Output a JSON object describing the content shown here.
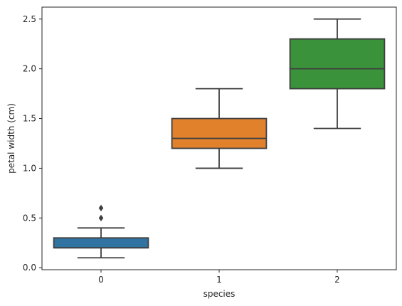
{
  "chart_data": {
    "type": "box",
    "xlabel": "species",
    "ylabel": "petal width (cm)",
    "categories": [
      "0",
      "1",
      "2"
    ],
    "ylim": [
      -0.02,
      2.62
    ],
    "yticks": [
      0.0,
      0.5,
      1.0,
      1.5,
      2.0,
      2.5
    ],
    "ytick_labels": [
      "0.0",
      "0.5",
      "1.0",
      "1.5",
      "2.0",
      "2.5"
    ],
    "grid": false,
    "boxes": [
      {
        "category": "0",
        "whisker_low": 0.1,
        "q1": 0.2,
        "median": 0.2,
        "q3": 0.3,
        "whisker_high": 0.4,
        "outliers": [
          0.5,
          0.6
        ],
        "color": "#3274a1"
      },
      {
        "category": "1",
        "whisker_low": 1.0,
        "q1": 1.2,
        "median": 1.3,
        "q3": 1.5,
        "whisker_high": 1.8,
        "outliers": [],
        "color": "#e1812c"
      },
      {
        "category": "2",
        "whisker_low": 1.4,
        "q1": 1.8,
        "median": 2.0,
        "q3": 2.3,
        "whisker_high": 2.5,
        "outliers": [],
        "color": "#3a923a"
      }
    ],
    "line_color": "#3f3f3f"
  }
}
